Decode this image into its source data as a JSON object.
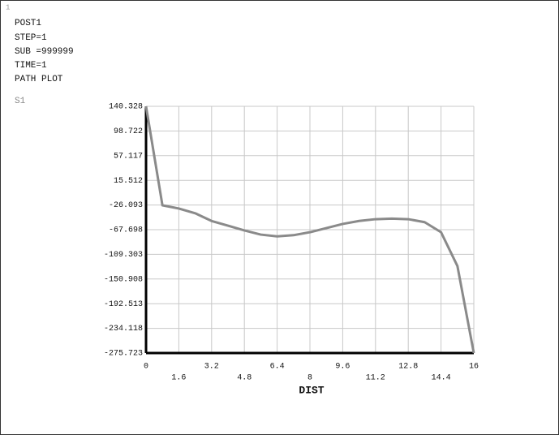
{
  "chart_data": {
    "type": "line",
    "window_number": "1",
    "header_lines": [
      "POST1",
      "STEP=1",
      "SUB =999999",
      "TIME=1",
      "PATH PLOT"
    ],
    "xlabel": "DIST",
    "x": [
      0,
      0.8,
      1.6,
      2.4,
      3.2,
      4,
      4.8,
      5.6,
      6.4,
      7.2,
      8,
      8.8,
      9.6,
      10.4,
      11.2,
      12,
      12.8,
      13.6,
      14.4,
      15.2,
      16
    ],
    "series": [
      {
        "name": "S1",
        "color": "#8a8a8a",
        "values": [
          140.3,
          -26.6,
          -32,
          -40,
          -53,
          -61,
          -69,
          -76,
          -79,
          -77,
          -72,
          -65,
          -58,
          -53,
          -50,
          -49,
          -50,
          -55,
          -72,
          -129,
          -275.7
        ]
      }
    ],
    "xlim": [
      0,
      16
    ],
    "xticks": [
      0,
      1.6,
      3.2,
      4.8,
      6.4,
      8,
      9.6,
      11.2,
      12.8,
      14.4,
      16
    ],
    "ylim": [
      -275.723,
      140.328
    ],
    "yticks": [
      140.328,
      98.722,
      57.117,
      15.512,
      -26.093,
      -67.698,
      -109.303,
      -150.908,
      -192.513,
      -234.118,
      -275.723
    ],
    "grid": true
  }
}
